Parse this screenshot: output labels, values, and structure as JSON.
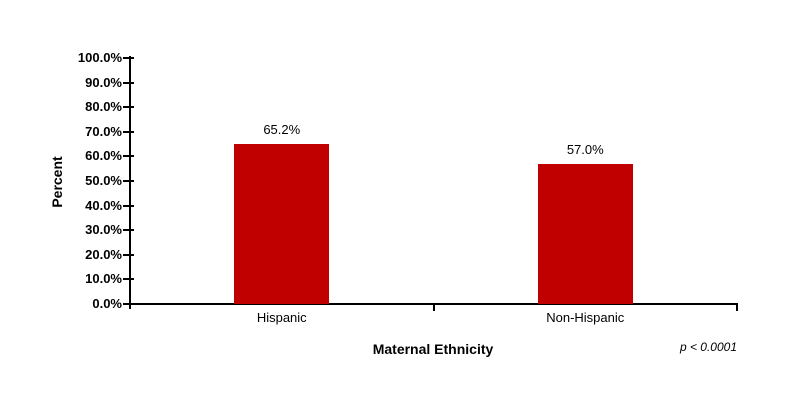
{
  "chart_data": {
    "type": "bar",
    "title": "",
    "categories": [
      "Hispanic",
      "Non-Hispanic"
    ],
    "values": [
      65.2,
      57.0
    ],
    "value_labels": [
      "65.2%",
      "57.0%"
    ],
    "xlabel": "Maternal Ethnicity",
    "ylabel": "Percent",
    "ylim": [
      0,
      100
    ],
    "ytick_step": 10,
    "ytick_labels": [
      "0.0%",
      "10.0%",
      "20.0%",
      "30.0%",
      "40.0%",
      "50.0%",
      "60.0%",
      "70.0%",
      "80.0%",
      "90.0%",
      "100.0%"
    ],
    "annotation": "p < 0.0001",
    "bar_color": "#c00000",
    "axis_color": "#000000",
    "background_color": "#ffffff",
    "grid": false,
    "legend": "none"
  }
}
